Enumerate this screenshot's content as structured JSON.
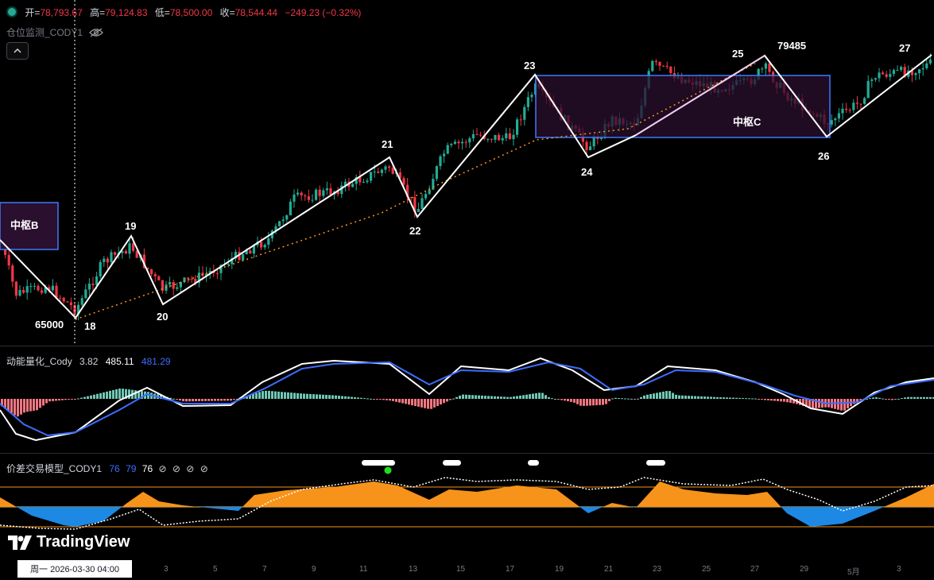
{
  "header": {
    "open_label": "开=",
    "open": "78,793.67",
    "high_label": "高=",
    "high": "79,124.83",
    "low_label": "低=",
    "low": "78,500.00",
    "close_label": "收=",
    "close": "78,544.44",
    "change": "−249.23 (−0.32%)"
  },
  "overlay_indicator": {
    "name": "仓位监测_CODY1"
  },
  "labels": {
    "zs_b": "中枢B",
    "zs_c": "中枢C",
    "p65000": "65000",
    "p79485": "79485",
    "n18": "18",
    "n19": "19",
    "n20": "20",
    "n21": "21",
    "n22": "22",
    "n23": "23",
    "n24": "24",
    "n25": "25",
    "n26": "26",
    "n27": "27"
  },
  "pane2": {
    "name": "动能量化_Cody",
    "v1": "3.82",
    "v2": "485.11",
    "v3": "481.29"
  },
  "pane3": {
    "name": "价差交易模型_CODY1",
    "v1": "76",
    "v2": "79",
    "v3": "76",
    "nulls": [
      "⊘",
      "⊘",
      "⊘",
      "⊘"
    ]
  },
  "brand": {
    "name": "TradingView"
  },
  "crosshair_date": "周一 2026-03-30   04:00",
  "time_ticks": [
    "3",
    "5",
    "7",
    "9",
    "11",
    "13",
    "15",
    "17",
    "19",
    "21",
    "23",
    "25",
    "27",
    "29",
    "5月",
    "3"
  ],
  "colors": {
    "up": "#22ab94",
    "down": "#f23645",
    "zigzag": "#ffffff",
    "box_border": "#3d7bff",
    "box_fill": "#2a0f2e",
    "macd_fast": "#ffffff",
    "macd_slow": "#3d6dff",
    "spread_up": "#f7931a",
    "spread_down": "#1e88e5"
  }
}
